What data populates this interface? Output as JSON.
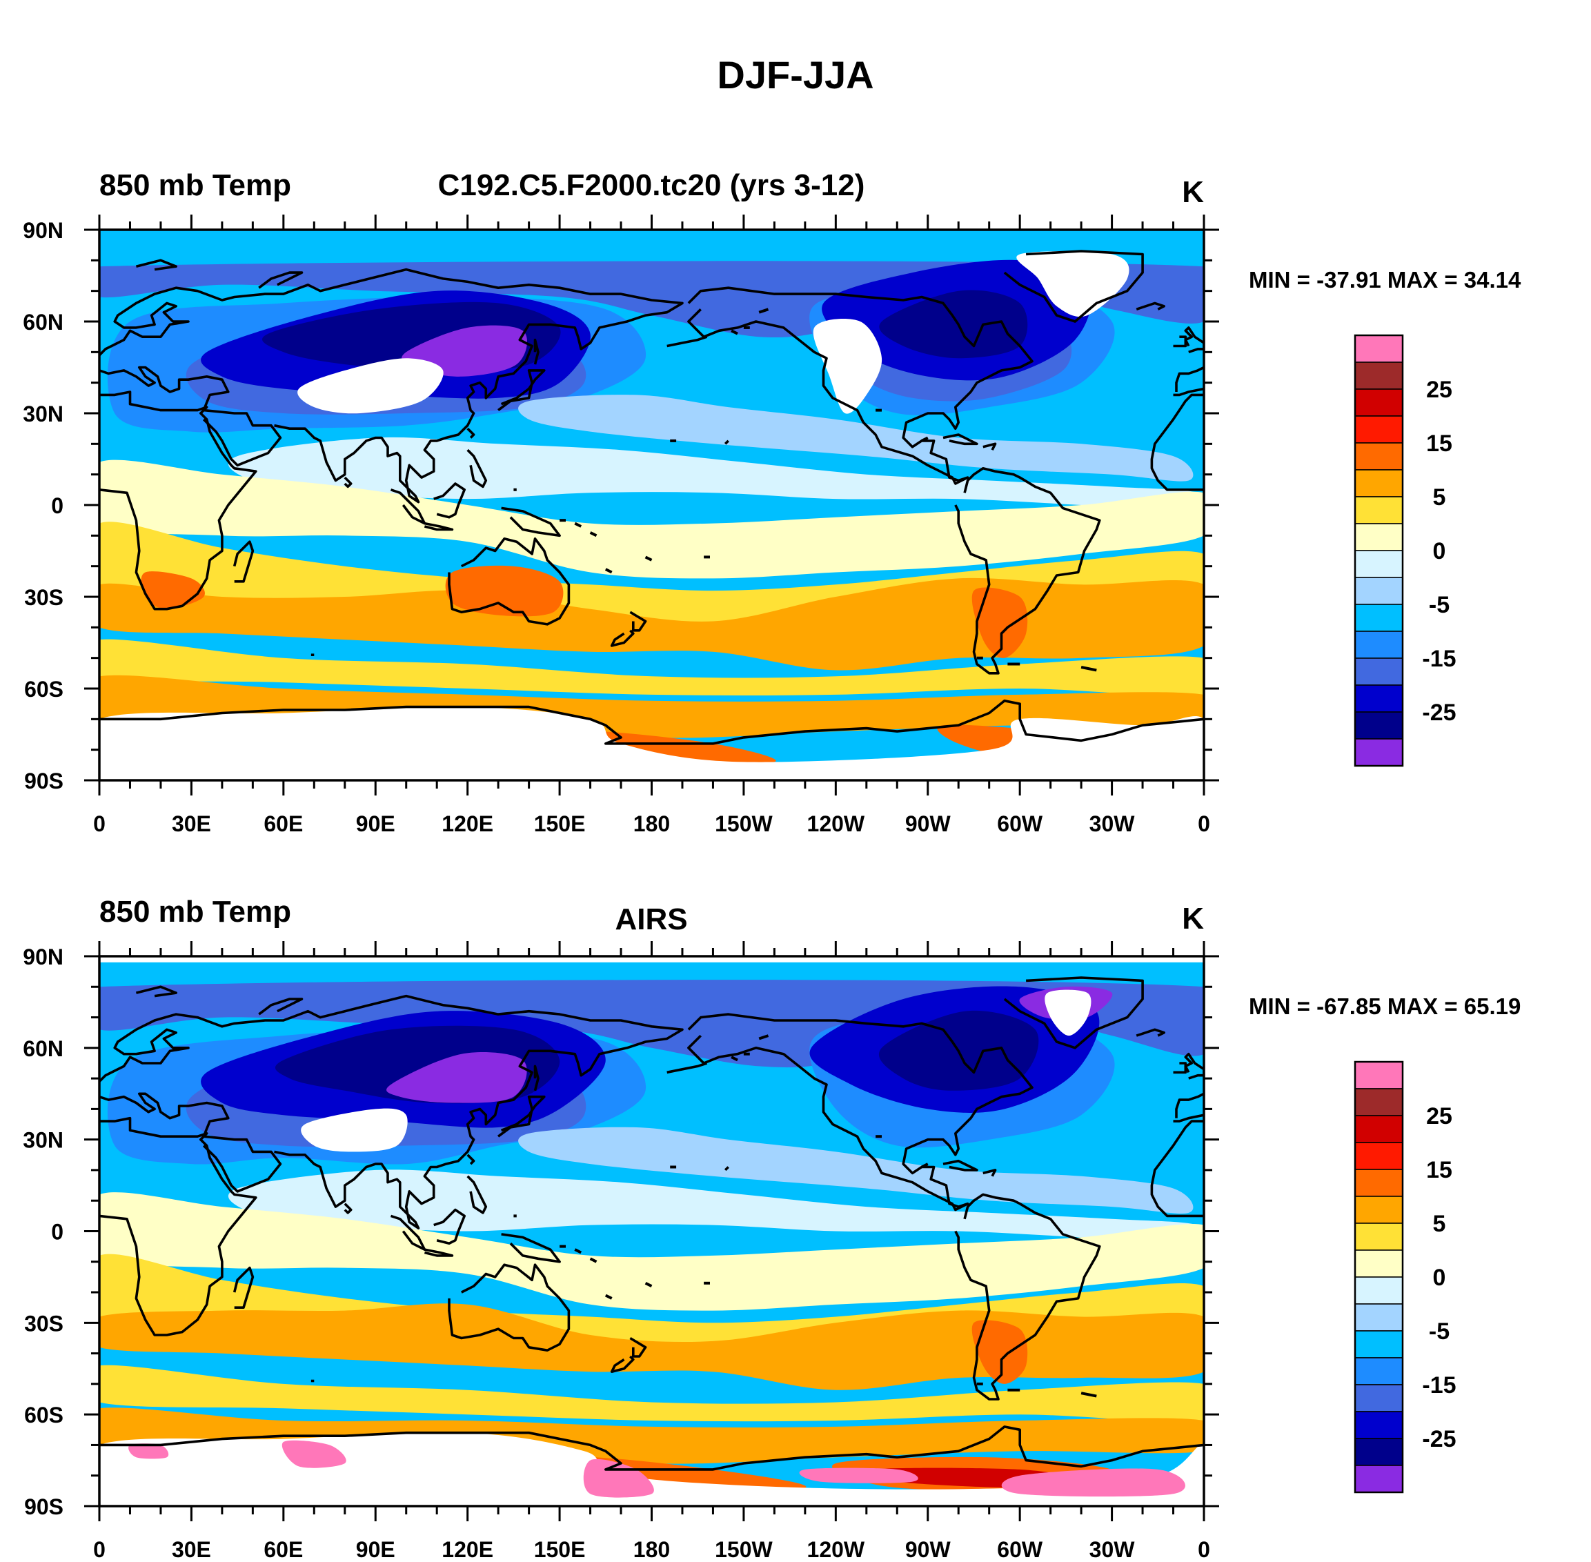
{
  "figure_title": "DJF-JJA",
  "colorbar_labels": [
    "25",
    "15",
    "5",
    "0",
    "-5",
    "-15",
    "-25"
  ],
  "colorbar_colors": [
    "#ff77b9",
    "#9d2a2a",
    "#d10000",
    "#ff1a00",
    "#ff6a00",
    "#ffa600",
    "#ffe136",
    "#ffffc6",
    "#d7f4ff",
    "#a3d4ff",
    "#00bfff",
    "#1e8cff",
    "#4169e0",
    "#0000cd",
    "#00008b",
    "#8a2be2"
  ],
  "lat_labels": [
    "90N",
    "60N",
    "30N",
    "0",
    "30S",
    "60S",
    "90S"
  ],
  "lon_labels": [
    "0",
    "30E",
    "60E",
    "90E",
    "120E",
    "150E",
    "180",
    "150W",
    "120W",
    "90W",
    "60W",
    "30W",
    "0"
  ],
  "panels": [
    {
      "left_string": "850 mb Temp",
      "center_string": "C192.C5.F2000.tc20 (yrs 3-12)",
      "units": "K",
      "stats": "MIN = -37.91 MAX =  34.14",
      "min": -37.91,
      "max": 34.14
    },
    {
      "left_string": "850 mb Temp",
      "center_string": "AIRS",
      "units": "K",
      "stats": "MIN = -67.85 MAX =  65.19",
      "min": -67.85,
      "max": 65.19
    }
  ]
}
